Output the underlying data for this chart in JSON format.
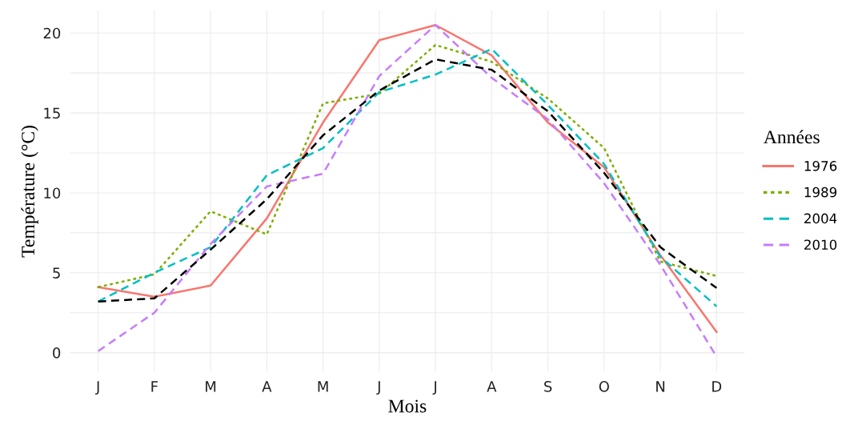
{
  "chart_data": {
    "type": "line",
    "xlabel": "Mois",
    "ylabel": "Température (°C)",
    "legend_title": "Années",
    "legend": "right",
    "grid": true,
    "categories": [
      "J",
      "F",
      "M",
      "A",
      "M",
      "J",
      "J",
      "A",
      "S",
      "O",
      "N",
      "D"
    ],
    "ylim": [
      -1.2,
      21.4
    ],
    "yticks": [
      0,
      {
        "value": 2.5,
        "label": null
      },
      5,
      {
        "value": 7.5,
        "label": null
      },
      10,
      {
        "value": 12.5,
        "label": null
      },
      15,
      {
        "value": 17.5,
        "label": null
      },
      20
    ],
    "series": [
      {
        "name": "1976",
        "color": "#f8766d",
        "line_style": "solid",
        "values": [
          4.1,
          3.5,
          4.2,
          8.4,
          14.4,
          19.55,
          20.5,
          18.6,
          14.4,
          11.6,
          6.1,
          1.3
        ]
      },
      {
        "name": "1989",
        "color": "#7cae00",
        "line_style": "dotted",
        "values": [
          4.1,
          4.9,
          8.85,
          7.4,
          15.6,
          16.2,
          19.25,
          18.2,
          15.9,
          12.8,
          5.7,
          4.8
        ]
      },
      {
        "name": "2004",
        "color": "#00bfc4",
        "line_style": "dashed",
        "values": [
          3.2,
          5.0,
          6.6,
          11.1,
          12.8,
          16.3,
          17.4,
          19.0,
          15.5,
          11.8,
          6.0,
          2.9
        ]
      },
      {
        "name": "2010",
        "color": "#c77cff",
        "line_style": "dashed",
        "values": [
          0.1,
          2.5,
          6.8,
          10.4,
          11.2,
          17.3,
          20.5,
          17.2,
          14.6,
          10.6,
          5.5,
          -0.25
        ]
      },
      {
        "color": "#000000",
        "line_style": "dashed",
        "values": [
          3.2,
          3.4,
          6.45,
          9.6,
          13.6,
          16.4,
          18.35,
          17.7,
          15.1,
          11.25,
          6.6,
          4.05
        ]
      }
    ]
  }
}
